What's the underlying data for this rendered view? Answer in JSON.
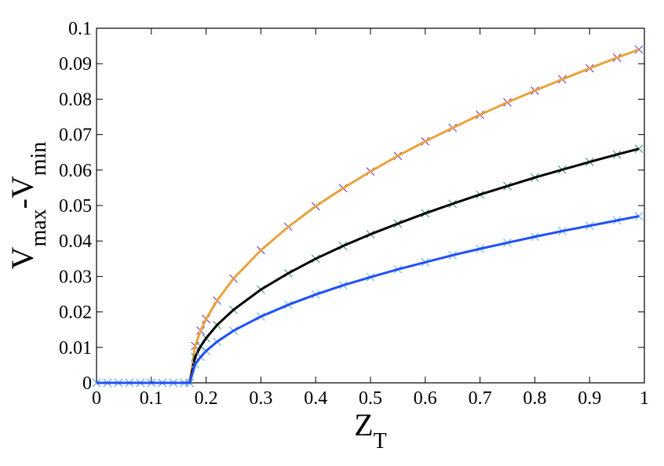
{
  "chart_data": {
    "type": "line",
    "xlabel": [
      {
        "text": "Z"
      },
      {
        "text": "T",
        "sub": true
      }
    ],
    "ylabel": [
      {
        "text": "V"
      },
      {
        "text": "max",
        "sub": true
      },
      {
        "text": "-V"
      },
      {
        "text": "min",
        "sub": true
      }
    ],
    "x": [
      0,
      0.02,
      0.04,
      0.06,
      0.08,
      0.1,
      0.12,
      0.14,
      0.16,
      0.17,
      0.18,
      0.19,
      0.2,
      0.22,
      0.25,
      0.3,
      0.35,
      0.4,
      0.45,
      0.5,
      0.55,
      0.6,
      0.65,
      0.7,
      0.75,
      0.8,
      0.85,
      0.9,
      0.95,
      0.99
    ],
    "series": [
      {
        "color": "#e8a33c",
        "marker_color": "#8a3dc7",
        "values": [
          0,
          0,
          0,
          0,
          0,
          0,
          0,
          0,
          0,
          0,
          0.0104,
          0.0147,
          0.018,
          0.0232,
          0.0294,
          0.0374,
          0.044,
          0.0498,
          0.0549,
          0.0596,
          0.064,
          0.0681,
          0.0719,
          0.0756,
          0.0791,
          0.0824,
          0.0856,
          0.0887,
          0.0917,
          0.094
        ]
      },
      {
        "color": "#000000",
        "marker_color": "#4a9e7a",
        "values": [
          0,
          0,
          0,
          0,
          0,
          0,
          0,
          0,
          0,
          0,
          0.0073,
          0.0103,
          0.0126,
          0.0163,
          0.0206,
          0.0263,
          0.0309,
          0.035,
          0.0386,
          0.0419,
          0.0449,
          0.0478,
          0.0505,
          0.0531,
          0.0555,
          0.0579,
          0.0601,
          0.0623,
          0.0644,
          0.066
        ]
      },
      {
        "color": "#1f4fff",
        "marker_color": "#7ab8e0",
        "values": [
          0,
          0,
          0,
          0,
          0,
          0,
          0,
          0,
          0,
          0,
          0.0052,
          0.0073,
          0.009,
          0.0116,
          0.0147,
          0.0187,
          0.022,
          0.0249,
          0.0275,
          0.0298,
          0.032,
          0.034,
          0.036,
          0.0378,
          0.0395,
          0.0412,
          0.0428,
          0.0443,
          0.0458,
          0.047
        ]
      }
    ],
    "xlim": [
      0,
      1
    ],
    "xticks": [
      0,
      0.1,
      0.2,
      0.3,
      0.4,
      0.5,
      0.6,
      0.7,
      0.8,
      0.9,
      1
    ],
    "ylim": [
      0,
      0.1
    ],
    "yticks": [
      0,
      0.01,
      0.02,
      0.03,
      0.04,
      0.05,
      0.06,
      0.07,
      0.08,
      0.09,
      0.1
    ]
  }
}
